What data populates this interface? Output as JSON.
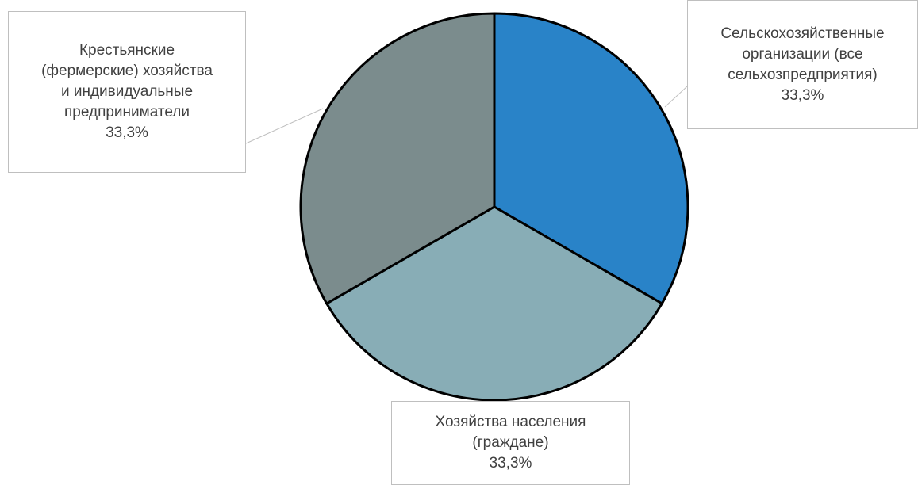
{
  "chart_data": {
    "type": "pie",
    "title": "",
    "slices": [
      {
        "label": "Сельскохозяйственные организации (все сельхозпредприятия)",
        "value": 33.3,
        "display_value": "33,3%",
        "color": "#2983c8"
      },
      {
        "label": "Хозяйства населения (граждане)",
        "value": 33.3,
        "display_value": "33,3%",
        "color": "#88adb6"
      },
      {
        "label": "Крестьянские (фермерские) хозяйства и индивидуальные предприниматели",
        "value": 33.3,
        "display_value": "33,3%",
        "color": "#7b8c8d"
      }
    ],
    "start_angle_deg": 0,
    "direction": "clockwise",
    "legend": "none",
    "data_labels": "callout"
  },
  "labels": [
    {
      "lines": "Сельскохозяйственные\nорганизации (все\nсельхозпредприятия)",
      "pct": "33,3%"
    },
    {
      "lines": "Хозяйства населения\n(граждане)",
      "pct": "33,3%"
    },
    {
      "lines": "Крестьянские\n(фермерские) хозяйства\nи индивидуальные\nпредприниматели",
      "pct": "33,3%"
    }
  ]
}
